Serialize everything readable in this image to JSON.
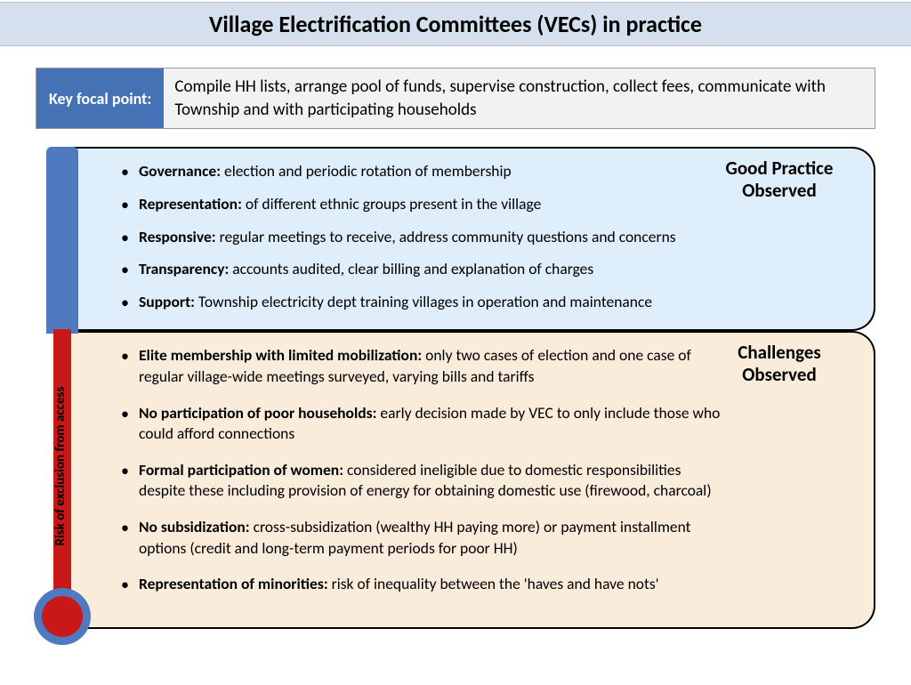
{
  "title": "Village Electrification Committees (VECs) in practice",
  "focal": {
    "label": "Key focal point:",
    "text": "Compile HH lists, arrange pool of funds, supervise construction, collect fees, communicate with Township and with participating households"
  },
  "thermometer": {
    "label": "Risk of exclusion from access",
    "blue_color": "#4f7abf",
    "red_color": "#c81818"
  },
  "good_practice": {
    "title": "Good Practice Observed",
    "background": "#deeefa",
    "items": [
      {
        "term": "Governance:",
        "desc": " election and periodic rotation of membership"
      },
      {
        "term": "Representation:",
        "desc": " of different ethnic groups present in the village"
      },
      {
        "term": "Responsive:",
        "desc": " regular meetings to receive, address community questions and concerns"
      },
      {
        "term": "Transparency:",
        "desc": " accounts audited, clear billing and explanation of charges"
      },
      {
        "term": "Support:",
        "desc": " Township electricity dept training villages in operation and maintenance"
      }
    ]
  },
  "challenges": {
    "title": "Challenges Observed",
    "background": "#faecdb",
    "items": [
      {
        "term": "Elite membership with limited mobilization:",
        "desc": " only two cases of election and one case of regular village-wide meetings surveyed, varying bills and tariffs"
      },
      {
        "term": "No participation of poor households:",
        "desc": " early decision made by VEC to only include those who could afford connections"
      },
      {
        "term": "Formal participation of women:",
        "desc": " considered ineligible due to domestic responsibilities despite these including provision of energy for obtaining domestic use (firewood, charcoal)"
      },
      {
        "term": "No subsidization:",
        "desc": " cross-subsidization (wealthy HH paying more) or payment installment options (credit and long-term payment periods for poor HH)"
      },
      {
        "term": "Representation of minorities:",
        "desc": " risk of inequality between the 'haves and have nots'"
      }
    ]
  }
}
